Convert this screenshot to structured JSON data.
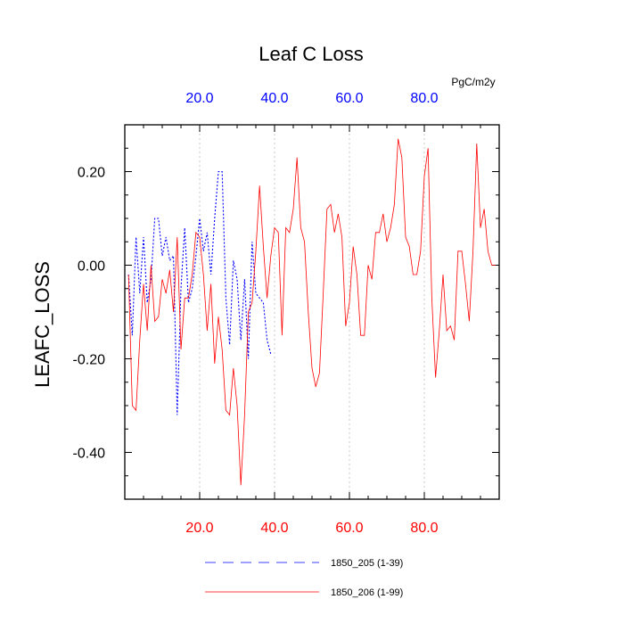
{
  "chart_data": {
    "type": "line",
    "title": "Leaf C Loss",
    "units_label": "PgC/m2y",
    "ylabel": "LEAFC_LOSS",
    "xlabel": "",
    "xlim": [
      0,
      100
    ],
    "ylim": [
      -0.5,
      0.3
    ],
    "grid_x": true,
    "grid_y": false,
    "x_ticks": [
      20,
      40,
      60,
      80
    ],
    "x_tick_labels": [
      "20.0",
      "40.0",
      "60.0",
      "80.0"
    ],
    "y_ticks": [
      0.2,
      0,
      -0.2,
      -0.4
    ],
    "y_tick_labels": [
      "0.20",
      "0.00",
      "-0.20",
      "-0.40"
    ],
    "top_axis_color": "#0000ff",
    "bottom_axis_color": "#ff0000",
    "legend_position": "bottom",
    "series": [
      {
        "name": "1850_205 (1-39)",
        "color": "#0000ff",
        "style": "dashed",
        "x": [
          1,
          2,
          3,
          4,
          5,
          6,
          7,
          8,
          9,
          10,
          11,
          12,
          13,
          14,
          15,
          16,
          17,
          18,
          19,
          20,
          21,
          22,
          23,
          24,
          25,
          26,
          27,
          28,
          29,
          30,
          31,
          32,
          33,
          34,
          35,
          36,
          37,
          38,
          39
        ],
        "values": [
          -0.02,
          -0.15,
          0.06,
          -0.06,
          0.06,
          -0.08,
          -0.03,
          0.1,
          0.1,
          0.02,
          0.06,
          0.01,
          0.02,
          -0.32,
          -0.05,
          0.08,
          -0.08,
          -0.05,
          0.02,
          0.1,
          0.03,
          0.07,
          -0.02,
          0.1,
          0.2,
          0.2,
          -0.07,
          -0.17,
          0.01,
          -0.03,
          -0.16,
          -0.03,
          -0.2,
          0.05,
          -0.06,
          -0.07,
          -0.08,
          -0.16,
          -0.19
        ]
      },
      {
        "name": "1850_206 (1-99)",
        "color": "#ff0000",
        "style": "solid",
        "x": [
          1,
          2,
          3,
          4,
          5,
          6,
          7,
          8,
          9,
          10,
          11,
          12,
          13,
          14,
          15,
          16,
          17,
          18,
          19,
          20,
          21,
          22,
          23,
          24,
          25,
          26,
          27,
          28,
          29,
          30,
          31,
          32,
          33,
          34,
          35,
          36,
          37,
          38,
          39,
          40,
          41,
          42,
          43,
          44,
          45,
          46,
          47,
          48,
          49,
          50,
          51,
          52,
          53,
          54,
          55,
          56,
          57,
          58,
          59,
          60,
          61,
          62,
          63,
          64,
          65,
          66,
          67,
          68,
          69,
          70,
          71,
          72,
          73,
          74,
          75,
          76,
          77,
          78,
          79,
          80,
          81,
          82,
          83,
          84,
          85,
          86,
          87,
          88,
          89,
          90,
          91,
          92,
          93,
          94,
          95,
          96,
          97,
          98,
          99
        ],
        "values": [
          -0.02,
          -0.3,
          -0.31,
          -0.16,
          -0.04,
          -0.14,
          0.0,
          -0.12,
          -0.11,
          -0.03,
          -0.06,
          -0.01,
          -0.1,
          0.06,
          -0.18,
          -0.07,
          -0.07,
          -0.02,
          0.07,
          0.06,
          -0.02,
          -0.14,
          -0.04,
          -0.21,
          -0.11,
          -0.18,
          -0.31,
          -0.32,
          -0.22,
          -0.3,
          -0.47,
          -0.32,
          -0.1,
          -0.08,
          0.03,
          0.17,
          0.04,
          -0.07,
          0.02,
          0.08,
          0.07,
          -0.15,
          0.08,
          0.07,
          0.12,
          0.23,
          0.08,
          0.05,
          -0.1,
          -0.22,
          -0.26,
          -0.23,
          -0.06,
          0.12,
          0.13,
          0.07,
          0.11,
          0.06,
          -0.13,
          -0.08,
          0.04,
          -0.02,
          -0.15,
          -0.15,
          0.0,
          -0.03,
          0.07,
          0.07,
          0.11,
          0.05,
          0.08,
          0.13,
          0.27,
          0.23,
          0.06,
          0.04,
          -0.02,
          -0.02,
          0.03,
          0.19,
          0.25,
          -0.07,
          -0.24,
          -0.14,
          -0.02,
          -0.14,
          -0.13,
          -0.16,
          0.03,
          0.03,
          -0.04,
          -0.12,
          0.03,
          0.26,
          0.08,
          0.12,
          0.03,
          0.0,
          -0.0
        ]
      }
    ]
  }
}
